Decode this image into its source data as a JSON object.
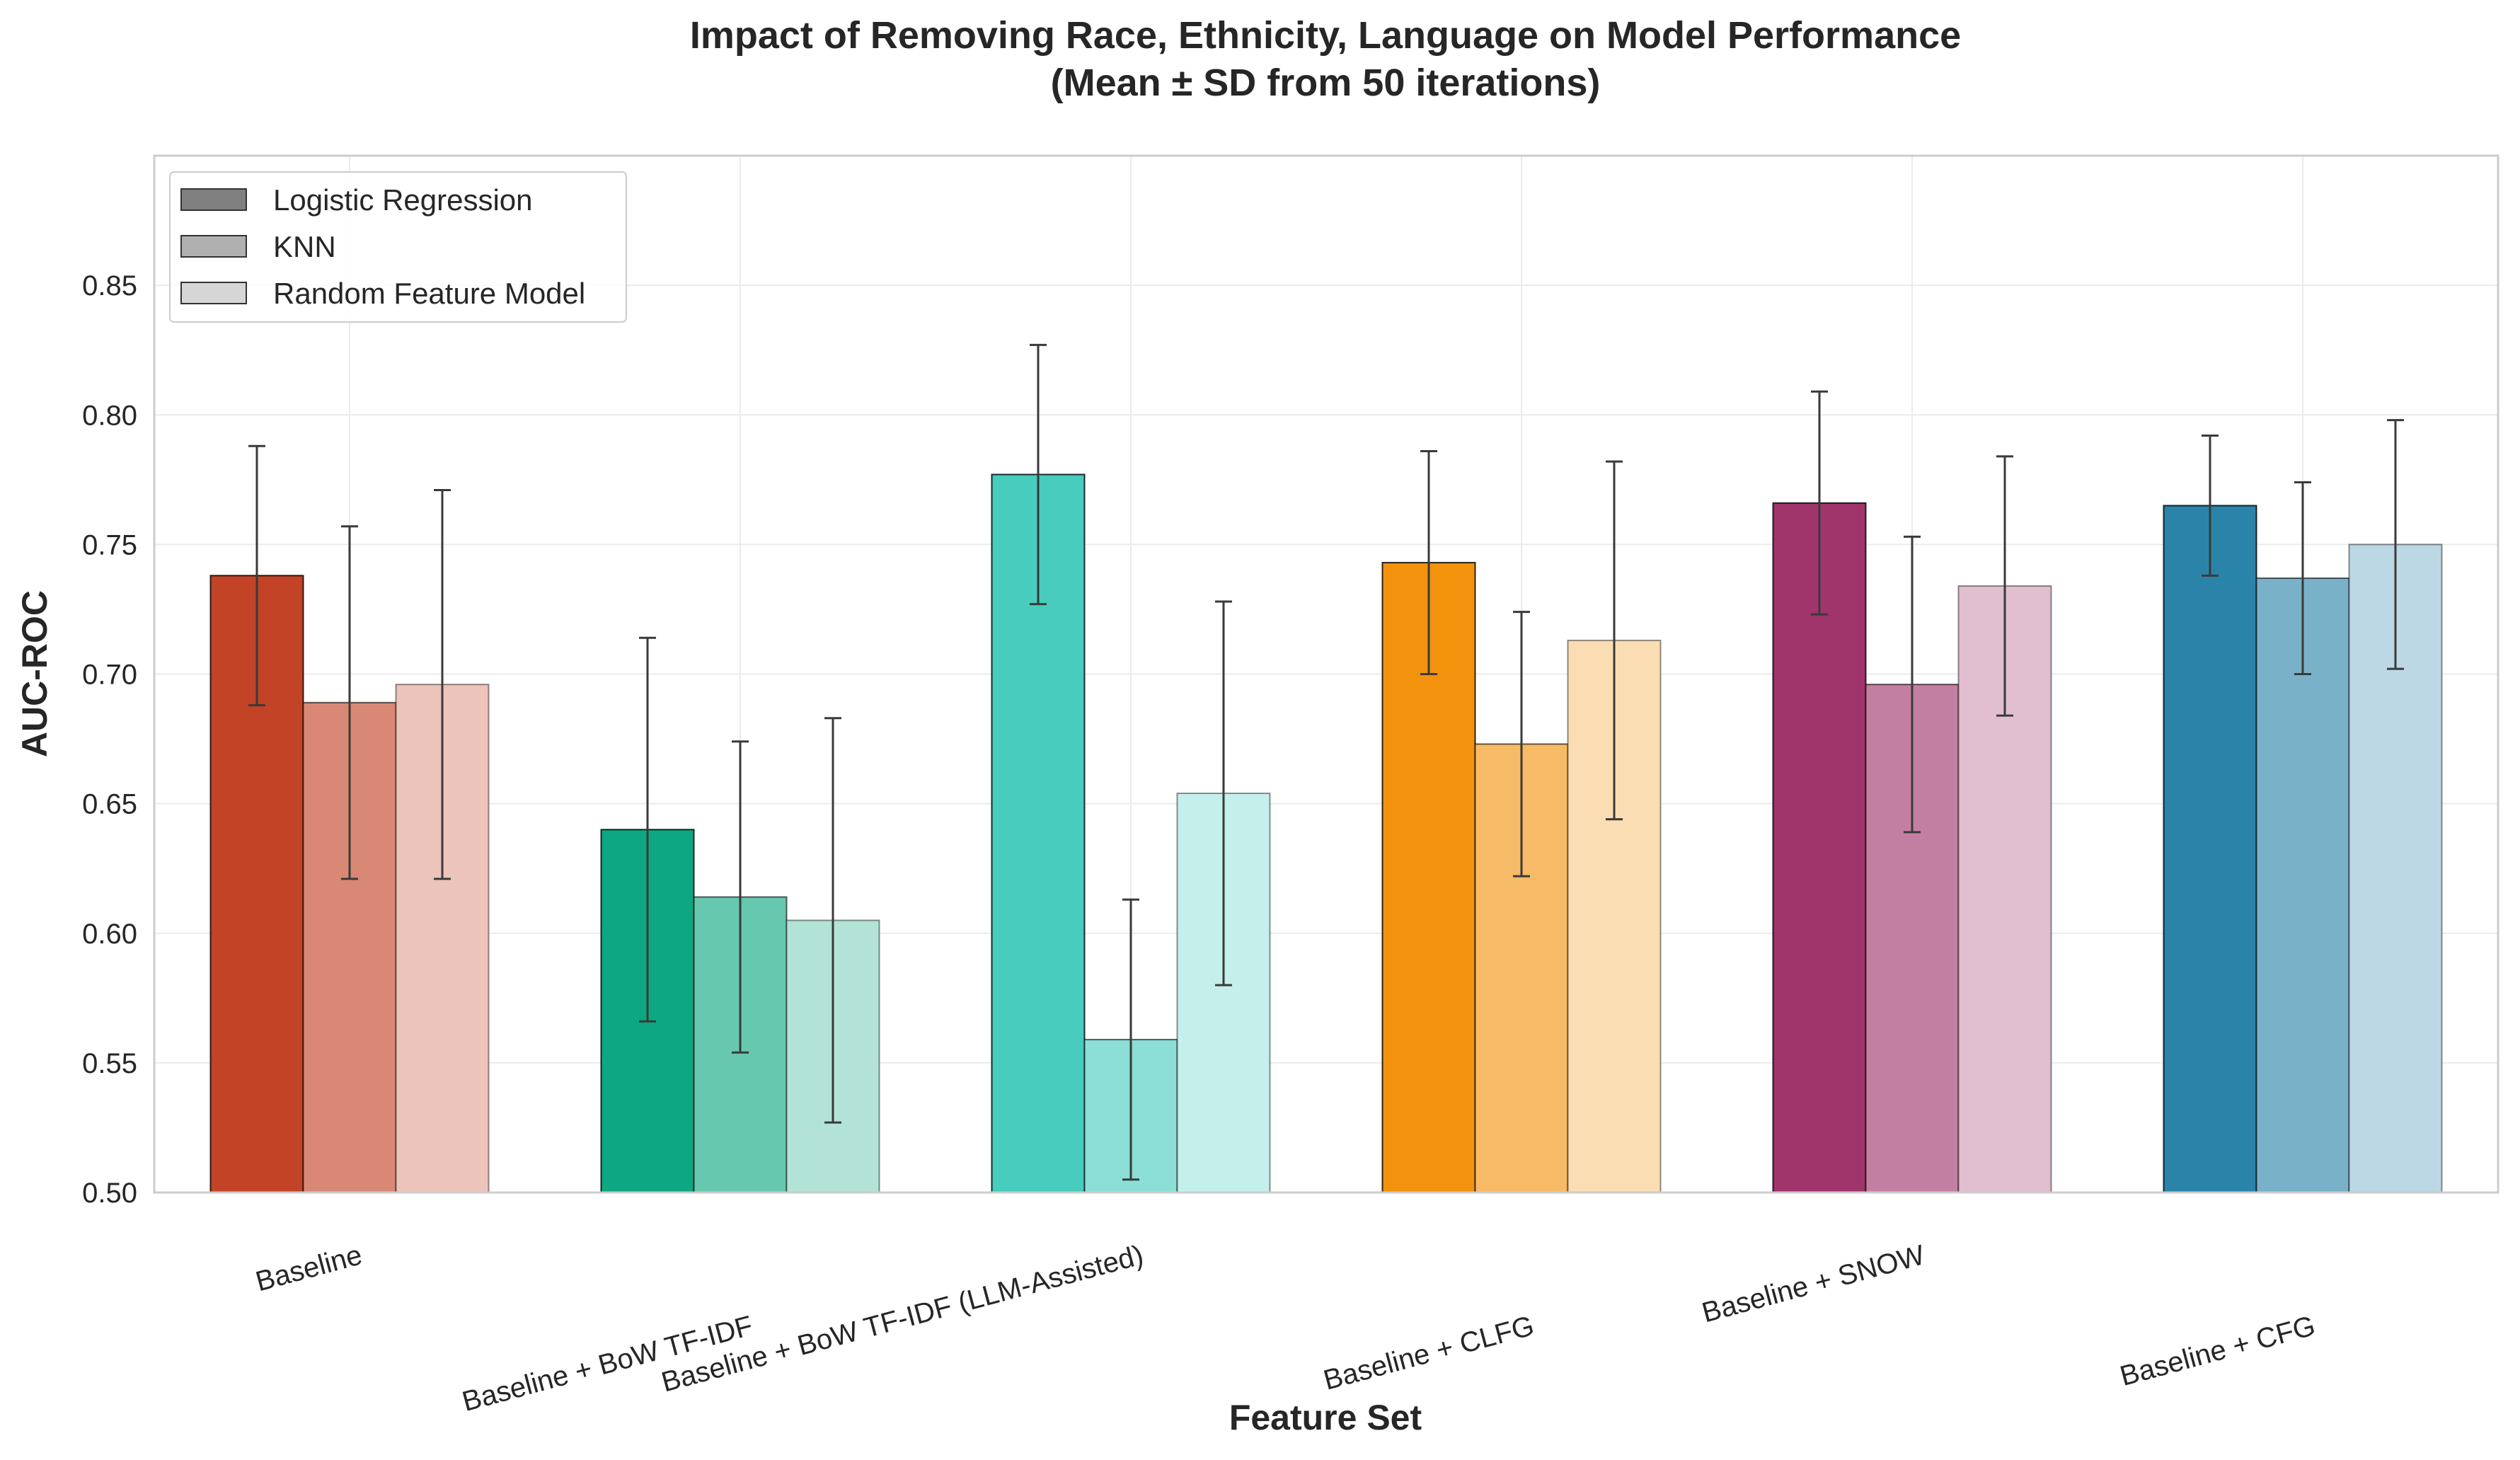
{
  "chart_data": {
    "type": "bar",
    "title": "Impact of Removing Race, Ethnicity, Language on Model Performance",
    "subtitle": "(Mean ± SD from 50 iterations)",
    "xlabel": "Feature Set",
    "ylabel": "AUC-ROC",
    "ylim": [
      0.5,
      0.9
    ],
    "yticks": [
      0.5,
      0.55,
      0.6,
      0.65,
      0.7,
      0.75,
      0.8,
      0.85
    ],
    "ytick_labels": [
      "0.50",
      "0.55",
      "0.60",
      "0.65",
      "0.70",
      "0.75",
      "0.80",
      "0.85"
    ],
    "grid": true,
    "legend_position": "top-left",
    "categories": [
      "Baseline",
      "Baseline + BoW TF-IDF",
      "Baseline + BoW TF-IDF (LLM-Assisted)",
      "Baseline + CLFG",
      "Baseline + SNOW",
      "Baseline + CFG"
    ],
    "category_colors": [
      "#c0391b",
      "#00a37a",
      "#3dc9bb",
      "#f28c00",
      "#9b2a63",
      "#1f7ea4"
    ],
    "series": [
      {
        "name": "Logistic Regression",
        "legend_color": "#808080",
        "alpha": 0.95,
        "values": [
          0.738,
          0.64,
          0.777,
          0.743,
          0.766,
          0.765
        ],
        "sd": [
          0.05,
          0.074,
          0.05,
          0.043,
          0.043,
          0.027
        ]
      },
      {
        "name": "KNN",
        "legend_color": "#b0b0b0",
        "alpha": 0.6,
        "values": [
          0.689,
          0.614,
          0.559,
          0.673,
          0.696,
          0.737
        ],
        "sd": [
          0.068,
          0.06,
          0.054,
          0.051,
          0.057,
          0.037
        ]
      },
      {
        "name": "Random Feature Model",
        "legend_color": "#d6d6d6",
        "alpha": 0.3,
        "values": [
          0.696,
          0.605,
          0.654,
          0.713,
          0.734,
          0.75
        ],
        "sd": [
          0.075,
          0.078,
          0.074,
          0.069,
          0.05,
          0.048
        ]
      }
    ]
  }
}
